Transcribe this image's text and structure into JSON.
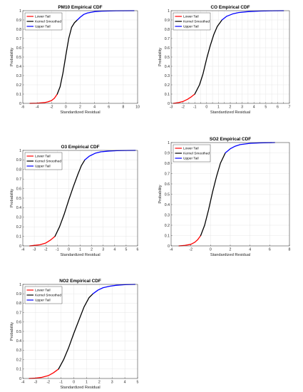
{
  "chart_data": [
    {
      "type": "line",
      "title": "PM10 Empirical CDF",
      "xlabel": "Standardized Residual",
      "ylabel": "Probability",
      "xlim": [
        -6,
        10
      ],
      "ylim": [
        0,
        1
      ],
      "xticks": [
        -6,
        -4,
        -2,
        0,
        2,
        4,
        6,
        8,
        10
      ],
      "yticks": [
        0,
        0.1,
        0.2,
        0.3,
        0.4,
        0.5,
        0.6,
        0.7,
        0.8,
        0.9,
        1
      ],
      "grid": true,
      "legend_position": "top-left",
      "data_range": [
        -5.0,
        9.5
      ],
      "split_points": [
        -1.2,
        1.6
      ],
      "series": [
        {
          "name": "Lower Tail",
          "color": "#ff0000",
          "x": [
            -5.0,
            -4.0,
            -3.0,
            -2.5,
            -2.0,
            -1.6,
            -1.2
          ],
          "y": [
            0.0,
            0.002,
            0.008,
            0.016,
            0.03,
            0.055,
            0.1
          ]
        },
        {
          "name": "Kernel Smoothed",
          "color": "#000000",
          "x": [
            -1.2,
            -0.8,
            -0.4,
            0.0,
            0.4,
            0.8,
            1.2,
            1.6
          ],
          "y": [
            0.1,
            0.18,
            0.33,
            0.52,
            0.7,
            0.82,
            0.87,
            0.9
          ]
        },
        {
          "name": "Upper Tail",
          "color": "#0000ff",
          "x": [
            1.6,
            2.0,
            2.5,
            3.0,
            4.0,
            5.0,
            7.0,
            9.5
          ],
          "y": [
            0.9,
            0.93,
            0.96,
            0.975,
            0.99,
            0.995,
            0.999,
            1.0
          ]
        }
      ]
    },
    {
      "type": "line",
      "title": "CO Empirical CDF",
      "xlabel": "Standardized Residual",
      "ylabel": "Probability",
      "xlim": [
        -3,
        7
      ],
      "ylim": [
        0,
        1
      ],
      "xticks": [
        -3,
        -2.5,
        -2,
        -1.5,
        -1,
        -0.5,
        0,
        0.5,
        1,
        1.5,
        2,
        2.5,
        3,
        3.5,
        4,
        4.5,
        5,
        5.5,
        6,
        6.5,
        7
      ],
      "xticklabels": [
        "-3",
        "",
        "-2",
        "",
        "-1",
        "",
        "0",
        "",
        "1",
        "",
        "2",
        "",
        "3",
        "",
        "4",
        "",
        "5",
        "",
        "6",
        "",
        "7"
      ],
      "yticks": [
        0,
        0.1,
        0.2,
        0.3,
        0.4,
        0.5,
        0.6,
        0.7,
        0.8,
        0.9,
        1
      ],
      "grid": true,
      "legend_position": "top-left",
      "data_range": [
        -2.8,
        6.5
      ],
      "split_points": [
        -1.0,
        1.3
      ],
      "series": [
        {
          "name": "Lower Tail",
          "color": "#ff0000",
          "x": [
            -2.8,
            -2.4,
            -2.0,
            -1.6,
            -1.3,
            -1.0
          ],
          "y": [
            0.0,
            0.008,
            0.02,
            0.045,
            0.07,
            0.1
          ]
        },
        {
          "name": "Kernel Smoothed",
          "color": "#000000",
          "x": [
            -1.0,
            -0.6,
            -0.3,
            0.0,
            0.3,
            0.6,
            0.9,
            1.3
          ],
          "y": [
            0.1,
            0.2,
            0.32,
            0.48,
            0.62,
            0.74,
            0.83,
            0.9
          ]
        },
        {
          "name": "Upper Tail",
          "color": "#0000ff",
          "x": [
            1.3,
            1.7,
            2.2,
            2.7,
            3.5,
            4.5,
            5.5,
            6.5
          ],
          "y": [
            0.9,
            0.94,
            0.965,
            0.98,
            0.99,
            0.996,
            0.999,
            1.0
          ]
        }
      ]
    },
    {
      "type": "line",
      "title": "O3 Empirical CDF",
      "xlabel": "Standardized Residual",
      "ylabel": "Probability",
      "xlim": [
        -4,
        6
      ],
      "ylim": [
        0,
        1
      ],
      "xticks": [
        -4,
        -3,
        -2,
        -1,
        0,
        1,
        2,
        3,
        4,
        5,
        6
      ],
      "yticks": [
        0,
        0.1,
        0.2,
        0.3,
        0.4,
        0.5,
        0.6,
        0.7,
        0.8,
        0.9,
        1
      ],
      "grid": true,
      "legend_position": "top-left",
      "data_range": [
        -3.4,
        5.8
      ],
      "split_points": [
        -1.2,
        1.4
      ],
      "series": [
        {
          "name": "Lower Tail",
          "color": "#ff0000",
          "x": [
            -3.4,
            -3.0,
            -2.5,
            -2.0,
            -1.6,
            -1.2
          ],
          "y": [
            0.0,
            0.005,
            0.012,
            0.03,
            0.06,
            0.1
          ]
        },
        {
          "name": "Kernel Smoothed",
          "color": "#000000",
          "x": [
            -1.2,
            -0.8,
            -0.4,
            0.0,
            0.4,
            0.8,
            1.1,
            1.4
          ],
          "y": [
            0.1,
            0.2,
            0.33,
            0.48,
            0.62,
            0.75,
            0.84,
            0.9
          ]
        },
        {
          "name": "Upper Tail",
          "color": "#0000ff",
          "x": [
            1.4,
            1.8,
            2.3,
            2.8,
            3.5,
            4.2,
            5.0,
            5.8
          ],
          "y": [
            0.9,
            0.94,
            0.97,
            0.985,
            0.993,
            0.997,
            0.999,
            1.0
          ]
        }
      ]
    },
    {
      "type": "line",
      "title": "SO2 Empirical CDF",
      "xlabel": "Standardized Residual",
      "ylabel": "Probability",
      "xlim": [
        -4,
        8
      ],
      "ylim": [
        0,
        1
      ],
      "xticks": [
        -4,
        -2,
        0,
        2,
        4,
        6,
        8
      ],
      "yticks": [
        0,
        0.1,
        0.2,
        0.3,
        0.4,
        0.5,
        0.6,
        0.7,
        0.8,
        0.9,
        1
      ],
      "grid": true,
      "legend_position": "top-left",
      "data_range": [
        -3.2,
        6.5
      ],
      "split_points": [
        -1.0,
        1.5
      ],
      "series": [
        {
          "name": "Lower Tail",
          "color": "#ff0000",
          "x": [
            -3.2,
            -2.6,
            -2.0,
            -1.6,
            -1.3,
            -1.0
          ],
          "y": [
            0.0,
            0.005,
            0.015,
            0.035,
            0.06,
            0.1
          ]
        },
        {
          "name": "Kernel Smoothed",
          "color": "#000000",
          "x": [
            -1.0,
            -0.6,
            -0.2,
            0.2,
            0.6,
            1.0,
            1.5
          ],
          "y": [
            0.1,
            0.2,
            0.35,
            0.52,
            0.67,
            0.8,
            0.9
          ]
        },
        {
          "name": "Upper Tail",
          "color": "#0000ff",
          "x": [
            1.5,
            2.0,
            2.5,
            3.0,
            4.0,
            5.0,
            6.5
          ],
          "y": [
            0.9,
            0.94,
            0.965,
            0.98,
            0.992,
            0.997,
            1.0
          ]
        }
      ]
    },
    {
      "type": "line",
      "title": "NO2 Empirical CDF",
      "xlabel": "Standardized Residual",
      "ylabel": "Probability",
      "xlim": [
        -4,
        5
      ],
      "ylim": [
        0,
        1
      ],
      "xticks": [
        -4,
        -3,
        -2,
        -1,
        0,
        1,
        2,
        3,
        4,
        5
      ],
      "yticks": [
        0,
        0.1,
        0.2,
        0.3,
        0.4,
        0.5,
        0.6,
        0.7,
        0.8,
        0.9,
        1
      ],
      "grid": true,
      "legend_position": "top-left",
      "data_range": [
        -3.5,
        4.8
      ],
      "split_points": [
        -1.2,
        1.5
      ],
      "series": [
        {
          "name": "Lower Tail",
          "color": "#ff0000",
          "x": [
            -3.5,
            -3.0,
            -2.5,
            -2.0,
            -1.6,
            -1.2
          ],
          "y": [
            0.0,
            0.004,
            0.012,
            0.03,
            0.06,
            0.1
          ]
        },
        {
          "name": "Kernel Smoothed",
          "color": "#000000",
          "x": [
            -1.2,
            -0.8,
            -0.4,
            0.0,
            0.4,
            0.8,
            1.2,
            1.5
          ],
          "y": [
            0.1,
            0.2,
            0.33,
            0.48,
            0.62,
            0.76,
            0.86,
            0.9
          ]
        },
        {
          "name": "Upper Tail",
          "color": "#0000ff",
          "x": [
            1.5,
            1.9,
            2.3,
            2.8,
            3.3,
            4.0,
            4.8
          ],
          "y": [
            0.9,
            0.94,
            0.965,
            0.98,
            0.99,
            0.997,
            1.0
          ]
        }
      ]
    }
  ]
}
